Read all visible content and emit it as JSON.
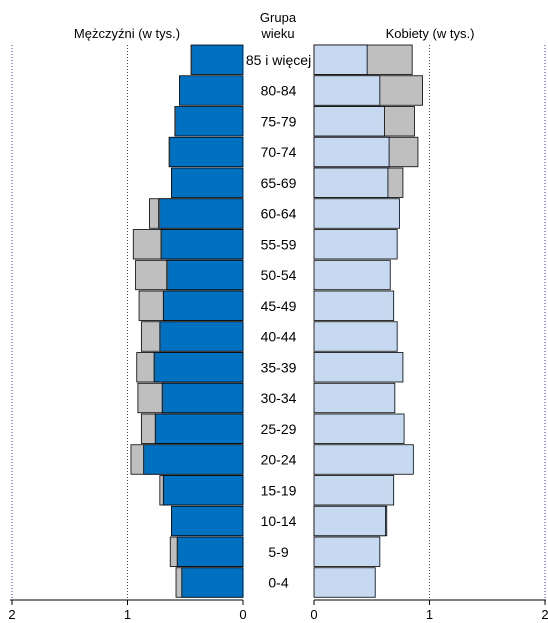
{
  "chart_data": {
    "type": "bar",
    "subtype": "population-pyramid",
    "colors": {
      "men_primary": "#0070c0",
      "women_primary": "#c6d9f1",
      "excess": "#bfbfbf",
      "grid": "#3333cc"
    },
    "left_label": "Mężczyźni (w tys.)",
    "right_label": "Kobiety (w tys.)",
    "center_header": [
      "Grupa",
      "wieku"
    ],
    "categories": [
      "85 i więcej",
      "80-84",
      "75-79",
      "70-74",
      "65-69",
      "60-64",
      "55-59",
      "50-54",
      "45-49",
      "40-44",
      "35-39",
      "30-34",
      "25-29",
      "20-24",
      "15-19",
      "10-14",
      "5-9",
      "0-4"
    ],
    "series": [
      {
        "side": "left",
        "primary": [
          0.45,
          0.55,
          0.59,
          0.64,
          0.62,
          0.73,
          0.71,
          0.66,
          0.69,
          0.72,
          0.77,
          0.7,
          0.76,
          0.86,
          0.69,
          0.62,
          0.57,
          0.53
        ],
        "extent": [
          0.45,
          0.55,
          0.59,
          0.64,
          0.62,
          0.81,
          0.95,
          0.93,
          0.9,
          0.88,
          0.92,
          0.91,
          0.88,
          0.97,
          0.72,
          0.62,
          0.63,
          0.58
        ]
      },
      {
        "side": "right",
        "primary": [
          0.46,
          0.57,
          0.61,
          0.65,
          0.64,
          0.74,
          0.72,
          0.66,
          0.69,
          0.72,
          0.77,
          0.7,
          0.78,
          0.86,
          0.69,
          0.62,
          0.57,
          0.53
        ],
        "extent": [
          0.85,
          0.94,
          0.87,
          0.9,
          0.77,
          0.74,
          0.72,
          0.66,
          0.69,
          0.72,
          0.77,
          0.7,
          0.78,
          0.86,
          0.69,
          0.63,
          0.57,
          0.53
        ]
      }
    ],
    "axis": {
      "left_ticks": [
        "2",
        "1",
        "0"
      ],
      "right_ticks": [
        "0",
        "1",
        "2"
      ],
      "range": [
        0,
        2
      ]
    }
  }
}
